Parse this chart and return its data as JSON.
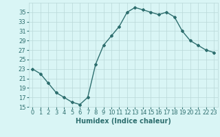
{
  "x": [
    0,
    1,
    2,
    3,
    4,
    5,
    6,
    7,
    8,
    9,
    10,
    11,
    12,
    13,
    14,
    15,
    16,
    17,
    18,
    19,
    20,
    21,
    22,
    23
  ],
  "y": [
    23,
    22,
    20,
    18,
    17,
    16,
    15.5,
    17,
    24,
    28,
    30,
    32,
    35,
    36,
    35.5,
    35,
    34.5,
    35,
    34,
    31,
    29,
    28,
    27,
    26.5
  ],
  "line_color": "#2d6e6e",
  "marker": "D",
  "marker_size": 2,
  "bg_color": "#d9f5f5",
  "grid_color": "#b8d8d8",
  "xlabel": "Humidex (Indice chaleur)",
  "xlim": [
    -0.5,
    23.5
  ],
  "ylim": [
    15,
    37
  ],
  "yticks": [
    15,
    17,
    19,
    21,
    23,
    25,
    27,
    29,
    31,
    33,
    35
  ],
  "xticks": [
    0,
    1,
    2,
    3,
    4,
    5,
    6,
    7,
    8,
    9,
    10,
    11,
    12,
    13,
    14,
    15,
    16,
    17,
    18,
    19,
    20,
    21,
    22,
    23
  ],
  "xlabel_fontsize": 7,
  "tick_fontsize": 6,
  "line_width": 1.0
}
